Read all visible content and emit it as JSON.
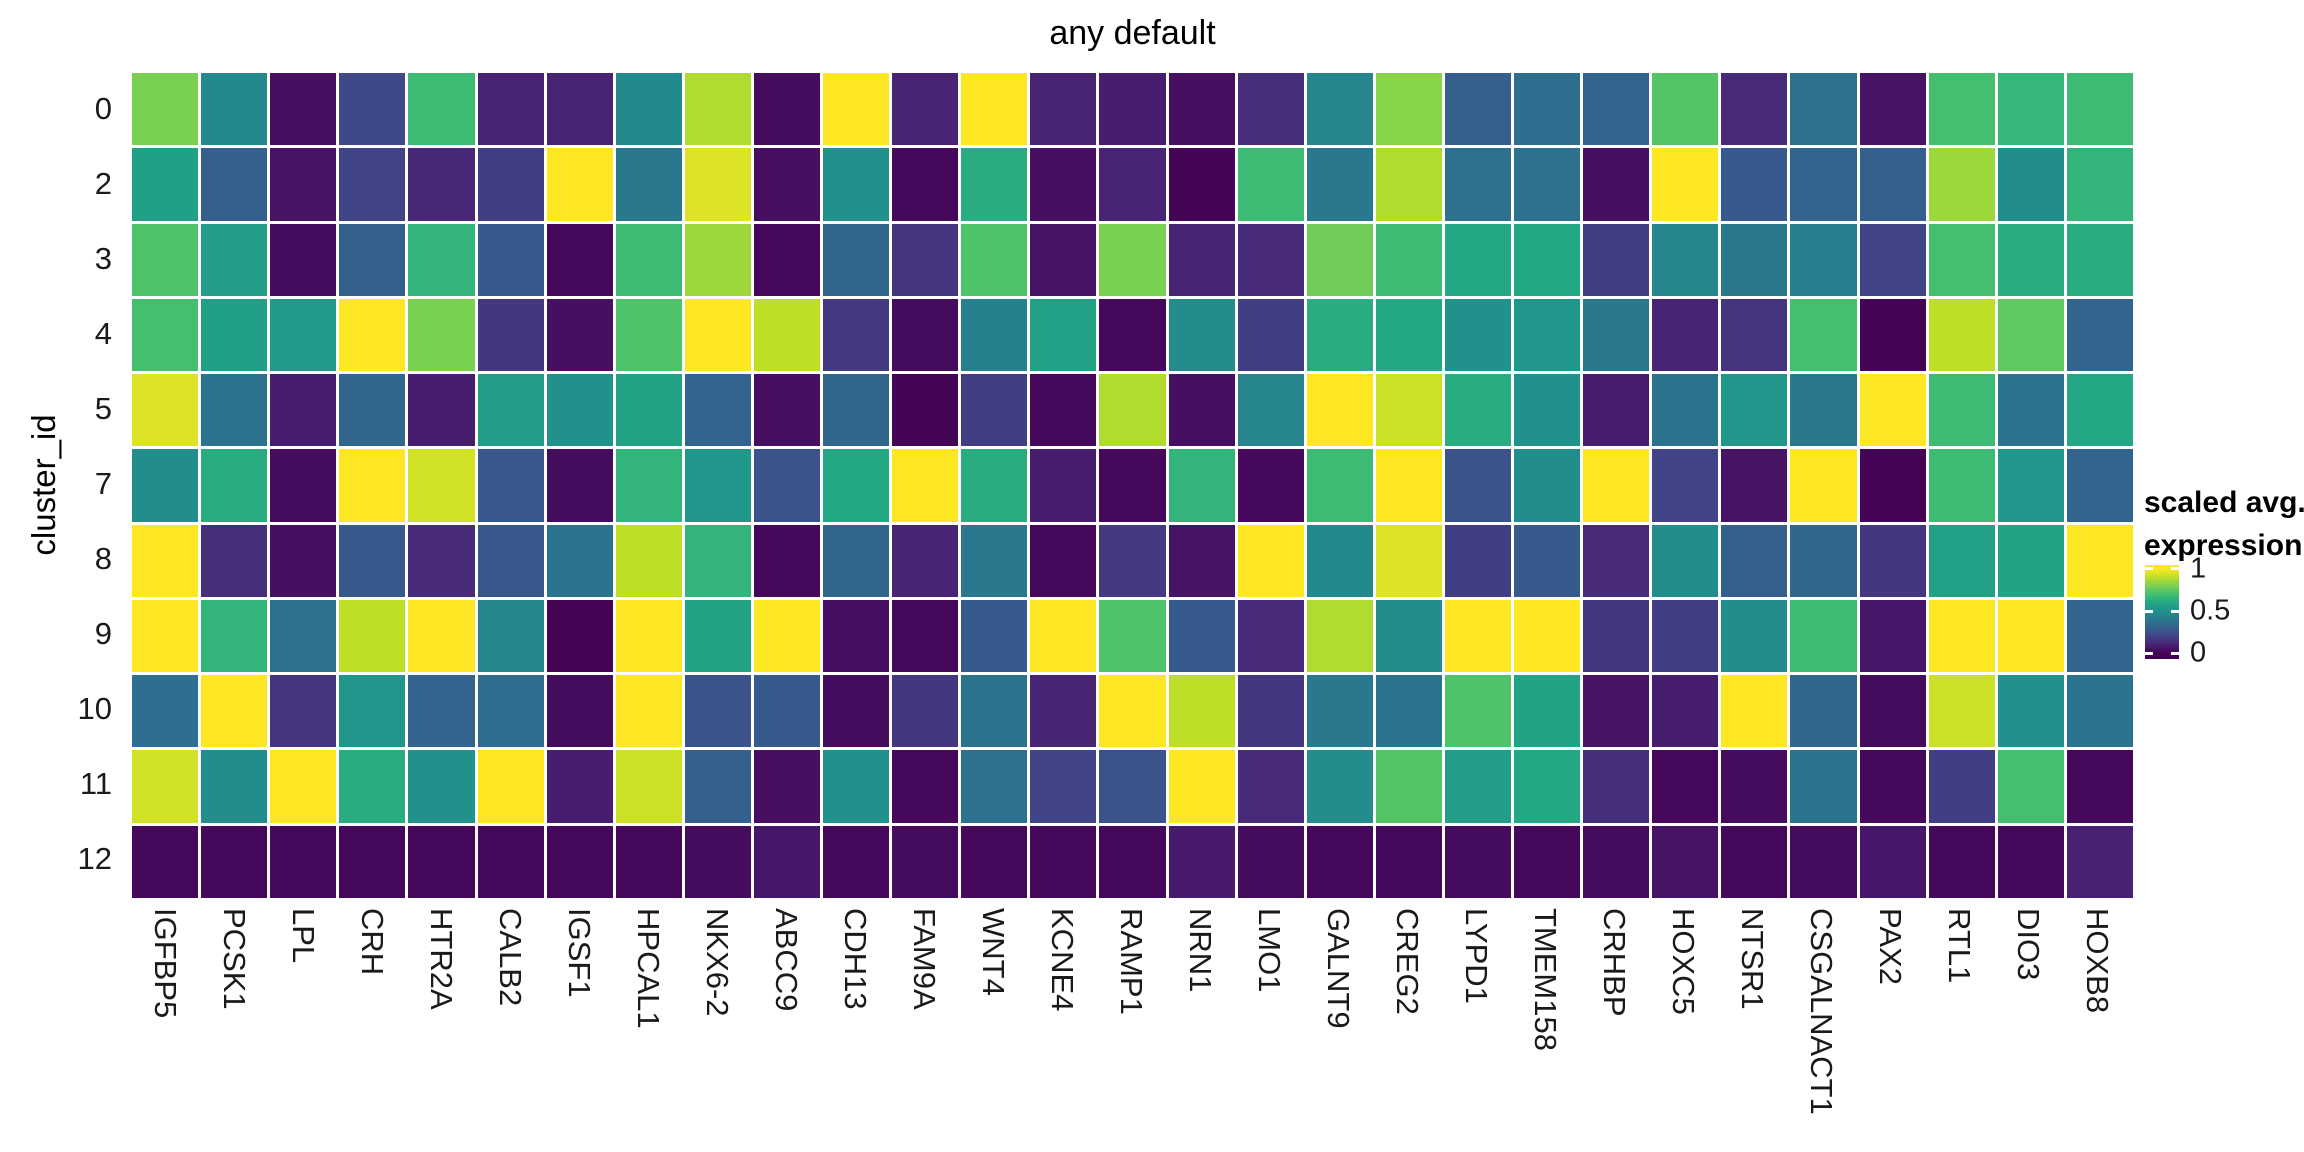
{
  "title": "any default",
  "y_axis": {
    "label": "cluster_id"
  },
  "legend": {
    "title_line1": "scaled avg.",
    "title_line2": "expression",
    "tick_labels": [
      "1",
      "0.5",
      "0"
    ]
  },
  "chart_data": {
    "type": "heatmap",
    "title": "any default",
    "x_categories": [
      "IGFBP5",
      "PCSK1",
      "LPL",
      "CRH",
      "HTR2A",
      "CALB2",
      "IGSF1",
      "HPCAL1",
      "NKX6-2",
      "ABCC9",
      "CDH13",
      "FAM9A",
      "WNT4",
      "KCNE4",
      "RAMP1",
      "NRN1",
      "LMO1",
      "GALNT9",
      "CREG2",
      "LYPD1",
      "TMEM158",
      "CRHBP",
      "HOXC5",
      "NTSR1",
      "CSGALNACT1",
      "PAX2",
      "RTL1",
      "DIO3",
      "HOXB8"
    ],
    "y_categories": [
      "0",
      "2",
      "3",
      "4",
      "5",
      "7",
      "8",
      "9",
      "10",
      "11",
      "12"
    ],
    "y_axis_label": "cluster_id",
    "legend_title": "scaled avg. expression",
    "legend_ticks": [
      1,
      0.5,
      0
    ],
    "value_range": [
      0,
      1
    ],
    "colormap": "viridis",
    "colormap_stops": [
      "#440154",
      "#482475",
      "#414487",
      "#355f8d",
      "#2a788e",
      "#21918c",
      "#22a884",
      "#44bf70",
      "#7ad151",
      "#bddf26",
      "#fde725"
    ],
    "grid_gap_color": "#ffffff",
    "background_color": "#ffffff",
    "values": [
      [
        0.8,
        0.47,
        0.04,
        0.22,
        0.68,
        0.1,
        0.1,
        0.47,
        0.88,
        0.03,
        1.0,
        0.1,
        1.0,
        0.1,
        0.08,
        0.04,
        0.13,
        0.45,
        0.82,
        0.3,
        0.36,
        0.32,
        0.73,
        0.12,
        0.37,
        0.05,
        0.7,
        0.66,
        0.68
      ],
      [
        0.56,
        0.3,
        0.05,
        0.2,
        0.11,
        0.18,
        1.0,
        0.4,
        0.95,
        0.04,
        0.5,
        0.02,
        0.62,
        0.04,
        0.1,
        0.01,
        0.68,
        0.4,
        0.88,
        0.37,
        0.37,
        0.04,
        1.0,
        0.28,
        0.32,
        0.3,
        0.85,
        0.48,
        0.65
      ],
      [
        0.72,
        0.55,
        0.03,
        0.3,
        0.65,
        0.28,
        0.02,
        0.68,
        0.85,
        0.02,
        0.33,
        0.15,
        0.72,
        0.05,
        0.8,
        0.1,
        0.12,
        0.78,
        0.68,
        0.6,
        0.6,
        0.18,
        0.45,
        0.4,
        0.42,
        0.2,
        0.7,
        0.62,
        0.62
      ],
      [
        0.7,
        0.56,
        0.54,
        1.0,
        0.8,
        0.16,
        0.04,
        0.72,
        1.0,
        0.9,
        0.17,
        0.03,
        0.43,
        0.57,
        0.02,
        0.48,
        0.18,
        0.62,
        0.6,
        0.5,
        0.52,
        0.4,
        0.1,
        0.15,
        0.7,
        0.01,
        0.9,
        0.75,
        0.32
      ],
      [
        0.95,
        0.38,
        0.08,
        0.33,
        0.08,
        0.55,
        0.5,
        0.58,
        0.32,
        0.04,
        0.33,
        0.01,
        0.18,
        0.02,
        0.88,
        0.04,
        0.45,
        1.0,
        0.92,
        0.62,
        0.5,
        0.08,
        0.38,
        0.52,
        0.4,
        1.0,
        0.68,
        0.38,
        0.6
      ],
      [
        0.48,
        0.62,
        0.03,
        1.0,
        0.93,
        0.27,
        0.03,
        0.65,
        0.52,
        0.25,
        0.6,
        1.0,
        0.62,
        0.08,
        0.02,
        0.65,
        0.02,
        0.68,
        1.0,
        0.26,
        0.48,
        1.0,
        0.2,
        0.05,
        1.0,
        0.01,
        0.68,
        0.52,
        0.32
      ],
      [
        1.0,
        0.13,
        0.04,
        0.28,
        0.12,
        0.27,
        0.38,
        0.9,
        0.65,
        0.02,
        0.33,
        0.1,
        0.4,
        0.02,
        0.17,
        0.05,
        1.0,
        0.47,
        0.95,
        0.18,
        0.28,
        0.12,
        0.48,
        0.3,
        0.33,
        0.16,
        0.57,
        0.58,
        1.0
      ],
      [
        1.0,
        0.65,
        0.37,
        0.9,
        1.0,
        0.45,
        0.01,
        1.0,
        0.58,
        1.0,
        0.04,
        0.02,
        0.28,
        1.0,
        0.72,
        0.28,
        0.12,
        0.88,
        0.48,
        1.0,
        1.0,
        0.16,
        0.18,
        0.48,
        0.68,
        0.06,
        1.0,
        1.0,
        0.32
      ],
      [
        0.36,
        1.0,
        0.15,
        0.52,
        0.32,
        0.35,
        0.03,
        1.0,
        0.26,
        0.28,
        0.03,
        0.16,
        0.38,
        0.1,
        1.0,
        0.9,
        0.16,
        0.4,
        0.38,
        0.72,
        0.58,
        0.05,
        0.08,
        1.0,
        0.33,
        0.03,
        0.92,
        0.5,
        0.38
      ],
      [
        0.93,
        0.48,
        1.0,
        0.62,
        0.5,
        1.0,
        0.08,
        0.92,
        0.3,
        0.04,
        0.5,
        0.02,
        0.37,
        0.2,
        0.25,
        1.0,
        0.12,
        0.48,
        0.73,
        0.55,
        0.6,
        0.13,
        0.02,
        0.03,
        0.38,
        0.02,
        0.18,
        0.7,
        0.02
      ],
      [
        0.02,
        0.02,
        0.02,
        0.02,
        0.02,
        0.02,
        0.02,
        0.02,
        0.03,
        0.06,
        0.02,
        0.03,
        0.02,
        0.02,
        0.02,
        0.07,
        0.03,
        0.02,
        0.02,
        0.03,
        0.02,
        0.03,
        0.05,
        0.02,
        0.03,
        0.06,
        0.02,
        0.02,
        0.09
      ]
    ]
  }
}
